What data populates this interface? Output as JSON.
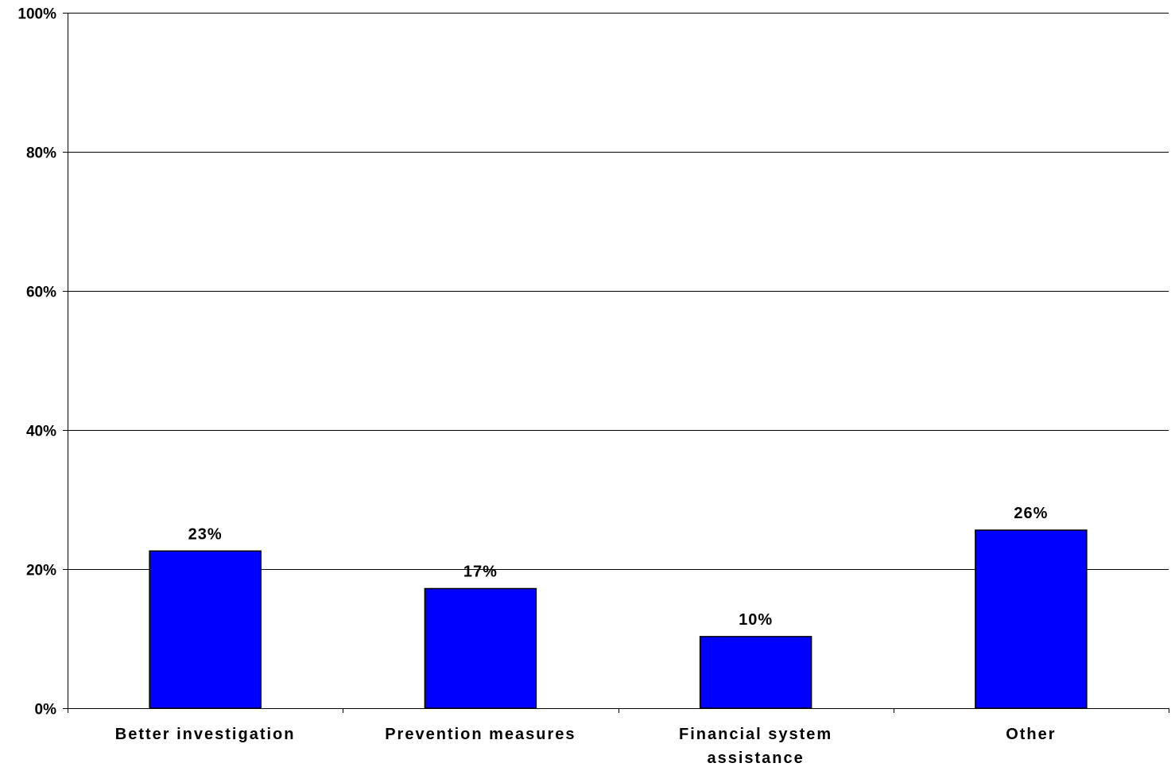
{
  "chart_data": {
    "type": "bar",
    "title": "",
    "xlabel": "",
    "ylabel": "",
    "categories": [
      [
        "Better investigation"
      ],
      [
        "Prevention measures"
      ],
      [
        "Financial system",
        "assistance"
      ],
      [
        "Other"
      ]
    ],
    "values": [
      22.6,
      17.2,
      10.3,
      25.6
    ],
    "data_labels": [
      "23%",
      "17%",
      "10%",
      "26%"
    ],
    "ylim": [
      0,
      100
    ],
    "yticks": [
      0,
      20,
      40,
      60,
      80,
      100
    ],
    "ytick_labels": [
      "0%",
      "20%",
      "40%",
      "60%",
      "80%",
      "100%"
    ],
    "grid": true,
    "legend": "none",
    "colors": {
      "bar_fill": "#0000ff",
      "bar_stroke": "#000000",
      "gridline": "#000000",
      "axis": "#000000",
      "background": "#ffffff"
    }
  }
}
